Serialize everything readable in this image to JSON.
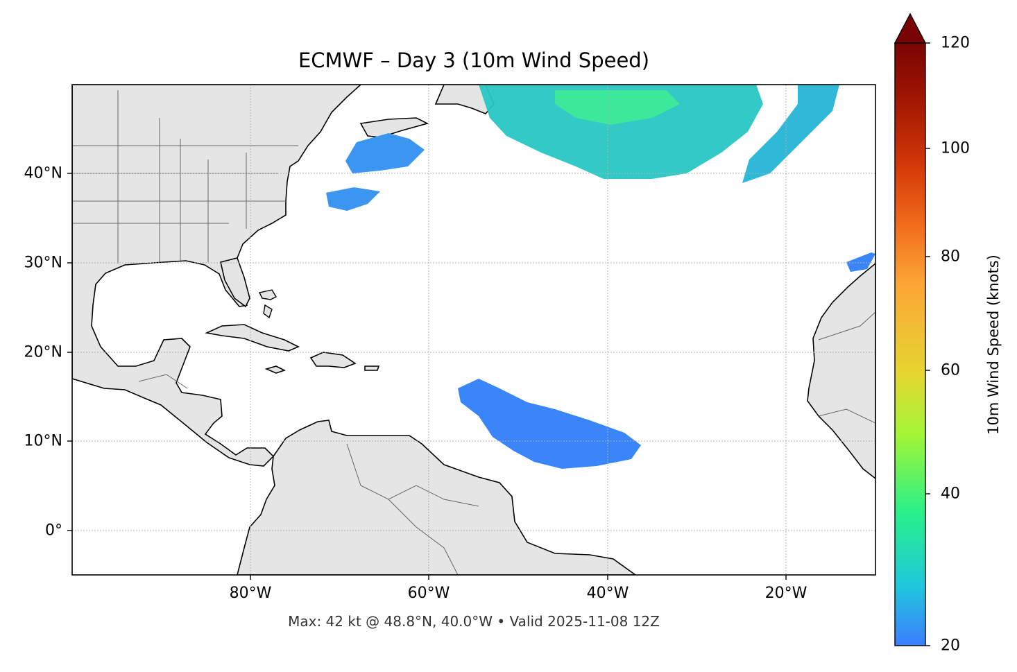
{
  "title": "ECMWF – Day 3 (10m Wind Speed)",
  "footer": "Max: 42 kt @ 48.8°N, 40.0°W • Valid 2025-11-08 12Z",
  "map_extent": {
    "lon": [
      -100,
      -10
    ],
    "lat": [
      -5,
      50
    ]
  },
  "x_ticks": [
    "80°W",
    "60°W",
    "40°W",
    "20°W"
  ],
  "y_ticks": [
    "40°N",
    "30°N",
    "20°N",
    "10°N",
    "0°"
  ],
  "colorbar": {
    "label": "10m Wind Speed (knots)",
    "range": [
      20,
      120
    ],
    "ticks": [
      "120",
      "100",
      "80",
      "60",
      "40",
      "20"
    ],
    "extend": "max",
    "colors": [
      "#3c7dff",
      "#1fc8dc",
      "#28f08a",
      "#a3f536",
      "#e5d630",
      "#fca636",
      "#f16b1b",
      "#d13707",
      "#9a1302",
      "#7a0403"
    ]
  },
  "colors": {
    "land": "#e5e5e5",
    "coast": "#000000",
    "borders": "#666666",
    "grid": "#b0b0b0"
  }
}
